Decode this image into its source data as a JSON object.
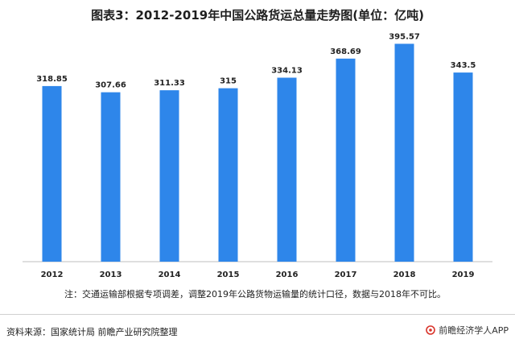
{
  "header": {
    "title": "图表3：2012-2019年中国公路货运总量走势图(单位：亿吨)"
  },
  "chart_data": {
    "type": "bar",
    "title": "图表3：2012-2019年中国公路货运总量走势图(单位：亿吨)",
    "categories": [
      "2012",
      "2013",
      "2014",
      "2015",
      "2016",
      "2017",
      "2018",
      "2019"
    ],
    "values": [
      318.85,
      307.66,
      311.33,
      315,
      334.13,
      368.69,
      395.57,
      343.5
    ],
    "value_labels": [
      "318.85",
      "307.66",
      "311.33",
      "315",
      "334.13",
      "368.69",
      "395.57",
      "343.5"
    ],
    "xlabel": "",
    "ylabel": "",
    "ylim": [
      0,
      405
    ],
    "grid": false,
    "legend": "none",
    "bar_color": "#2e86ea"
  },
  "footer": {
    "note": "注：交通运输部根据专项调差，调整2019年公路货物运输量的统计口径，数据与2018年不可比。",
    "source": "资料来源：国家统计局 前瞻产业研究院整理",
    "brand": "前瞻经济学人APP"
  },
  "colors": {
    "bar": "#2e86ea",
    "axis": "#bfbfbf",
    "brand_icon": "#d9342b"
  }
}
